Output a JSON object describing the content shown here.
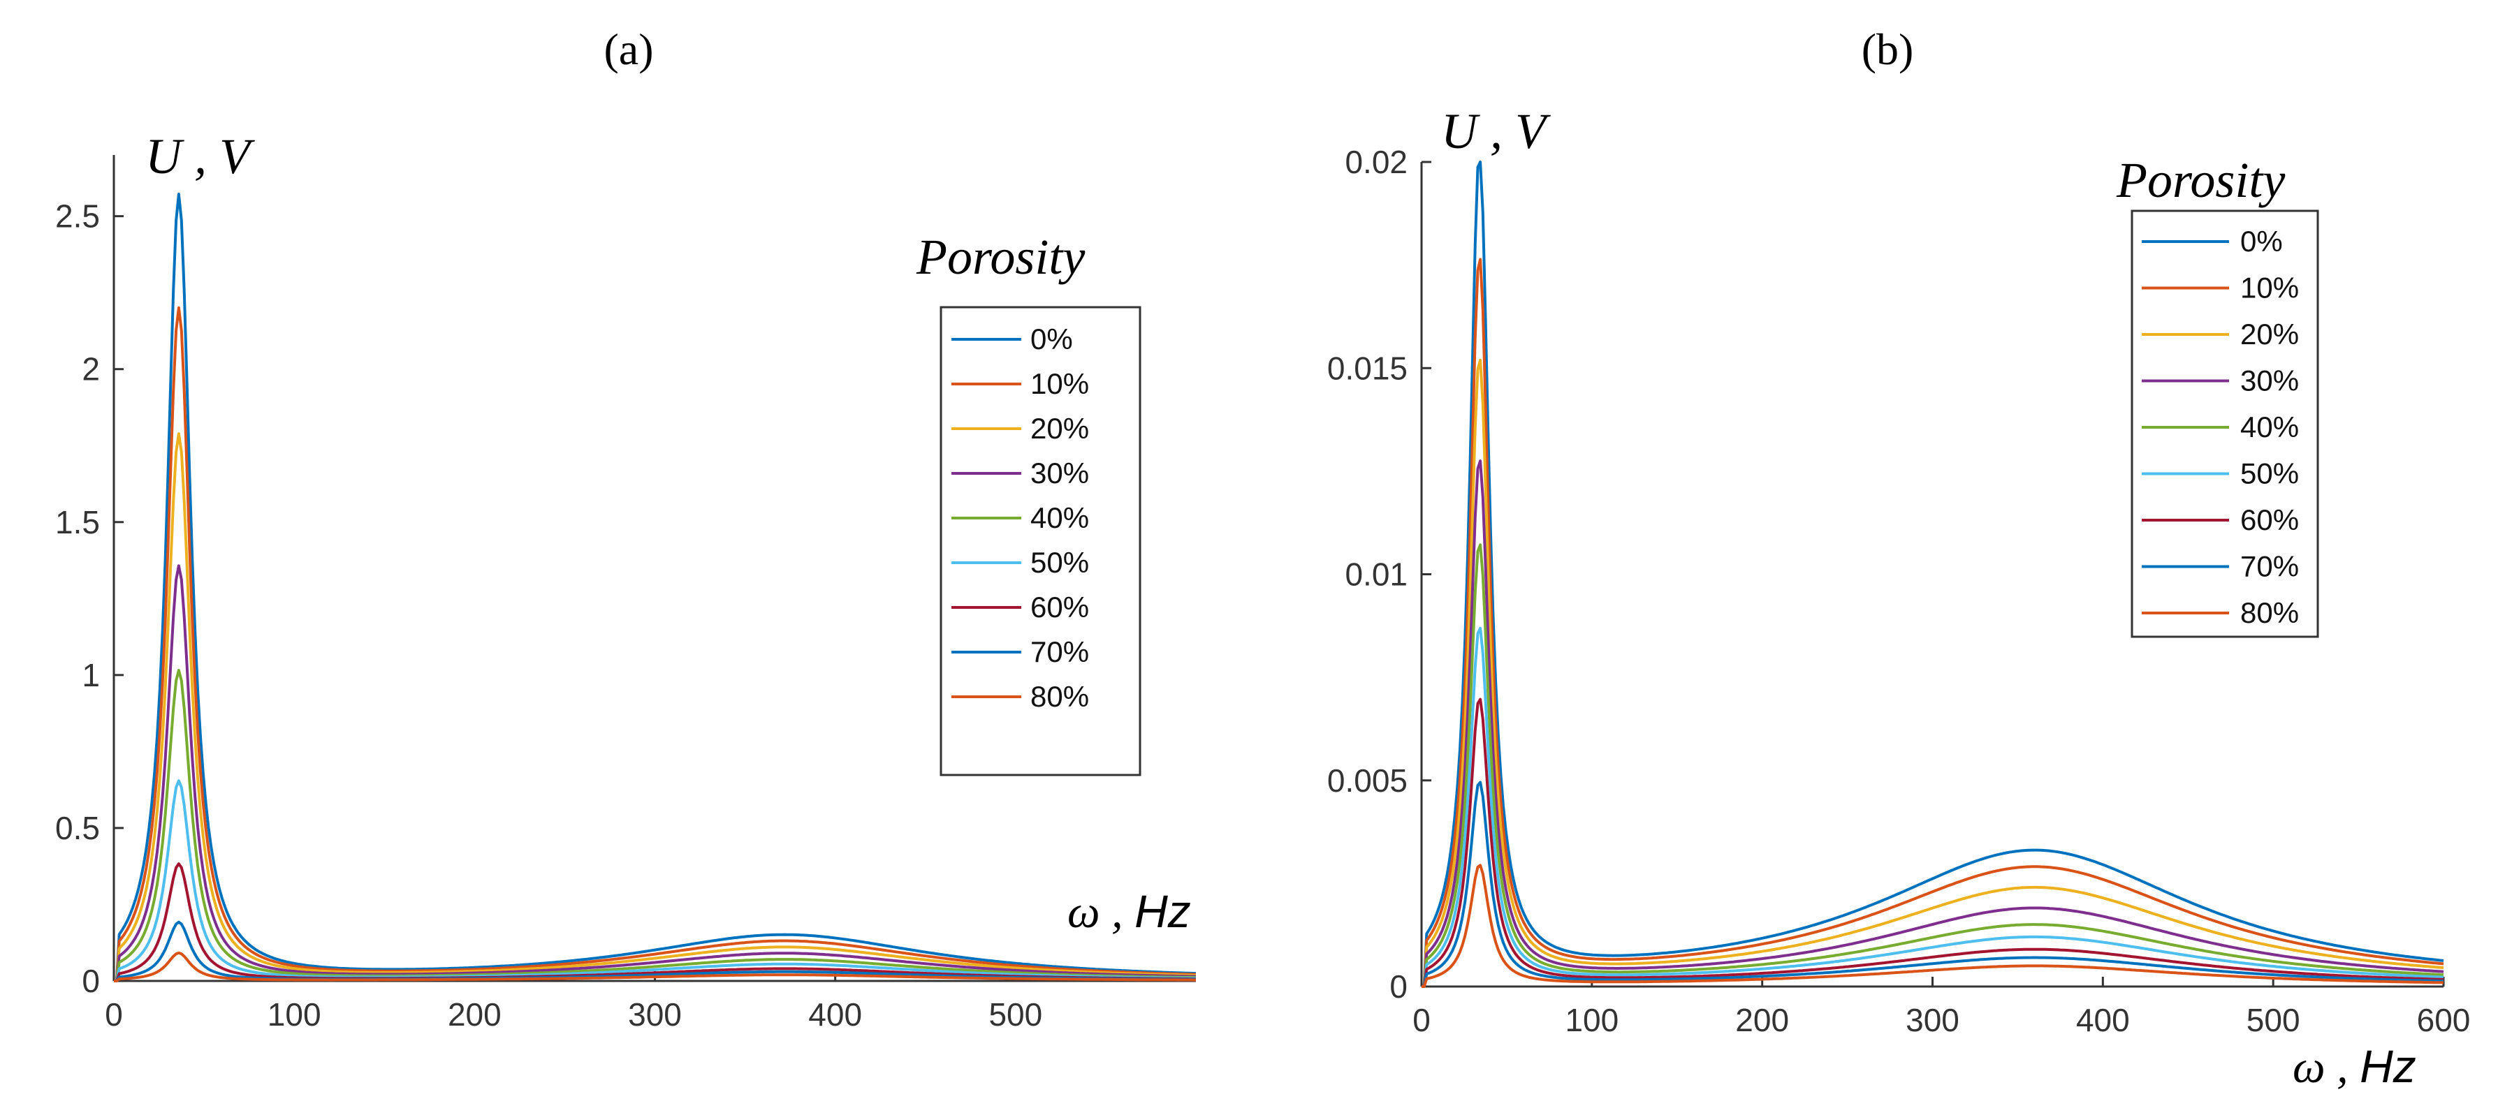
{
  "colors": [
    "#0072BD",
    "#D95319",
    "#EDB120",
    "#7E2F8E",
    "#77AC30",
    "#4DBEEE",
    "#A2142F",
    "#0072BD",
    "#D95319"
  ],
  "chart_data": [
    {
      "type": "line",
      "panel_label": "(a)",
      "ylabel": "U , V",
      "xlabel_symbol": "ω",
      "xlabel_sep": " , ",
      "xlabel_unit": "Hz",
      "xlim": [
        0,
        600
      ],
      "ylim": [
        0,
        2.7
      ],
      "xticks": [
        0,
        100,
        200,
        300,
        400,
        500
      ],
      "xtick_labels": [
        "0",
        "100",
        "200",
        "300",
        "400",
        "500"
      ],
      "yticks": [
        0,
        0.5,
        1,
        1.5,
        2,
        2.5
      ],
      "ytick_labels": [
        "0",
        "0.5",
        "1",
        "1.5",
        "2",
        "2.5"
      ],
      "legend_title": "Porosity",
      "peak1_freq": 36,
      "peak2_freq": 372,
      "series": [
        {
          "name": "0%",
          "peak1": 2.56,
          "peak2": 0.15
        },
        {
          "name": "10%",
          "peak1": 2.19,
          "peak2": 0.13
        },
        {
          "name": "20%",
          "peak1": 1.78,
          "peak2": 0.11
        },
        {
          "name": "30%",
          "peak1": 1.35,
          "peak2": 0.09
        },
        {
          "name": "40%",
          "peak1": 1.01,
          "peak2": 0.07
        },
        {
          "name": "50%",
          "peak1": 0.65,
          "peak2": 0.055
        },
        {
          "name": "60%",
          "peak1": 0.38,
          "peak2": 0.04
        },
        {
          "name": "70%",
          "peak1": 0.19,
          "peak2": 0.03
        },
        {
          "name": "80%",
          "peak1": 0.09,
          "peak2": 0.02
        }
      ]
    },
    {
      "type": "line",
      "panel_label": "(b)",
      "ylabel": "U , V",
      "xlabel_symbol": "ω",
      "xlabel_sep": " , ",
      "xlabel_unit": "Hz",
      "xlim": [
        0,
        600
      ],
      "ylim": [
        0,
        0.02
      ],
      "xticks": [
        0,
        100,
        200,
        300,
        400,
        500,
        600
      ],
      "xtick_labels": [
        "0",
        "100",
        "200",
        "300",
        "400",
        "500",
        "600"
      ],
      "yticks": [
        0,
        0.005,
        0.01,
        0.015,
        0.02
      ],
      "ytick_labels": [
        "0",
        "0.005",
        "0.01",
        "0.015",
        "0.02"
      ],
      "legend_title": "Porosity",
      "peak1_freq": 34,
      "peak2_freq": 360,
      "series": [
        {
          "name": "0%",
          "peak1": 0.0199,
          "peak2": 0.0033
        },
        {
          "name": "10%",
          "peak1": 0.0174,
          "peak2": 0.0029
        },
        {
          "name": "20%",
          "peak1": 0.015,
          "peak2": 0.0024
        },
        {
          "name": "30%",
          "peak1": 0.0126,
          "peak2": 0.0019
        },
        {
          "name": "40%",
          "peak1": 0.0106,
          "peak2": 0.0015
        },
        {
          "name": "50%",
          "peak1": 0.0086,
          "peak2": 0.0012
        },
        {
          "name": "60%",
          "peak1": 0.0069,
          "peak2": 0.0009
        },
        {
          "name": "70%",
          "peak1": 0.0049,
          "peak2": 0.0007
        },
        {
          "name": "80%",
          "peak1": 0.0029,
          "peak2": 0.0005
        }
      ]
    }
  ]
}
